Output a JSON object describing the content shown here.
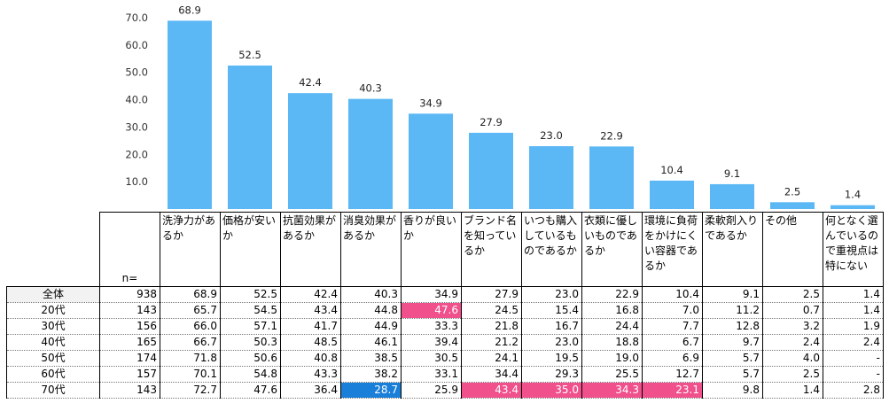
{
  "chart_data": {
    "type": "bar",
    "categories": [
      "洗浄力があるか",
      "価格が安いか",
      "抗菌効果があるか",
      "消臭効果があるか",
      "香りが良いか",
      "ブランド名を知っているか",
      "いつも購入しているものであるか",
      "衣類に優しいものであるか",
      "環境に負荷をかけにくい容器であるか",
      "柔軟剤入りであるか",
      "その他",
      "何となく選んでいるので重視点は特にない"
    ],
    "values": [
      68.9,
      52.5,
      42.4,
      40.3,
      34.9,
      27.9,
      23.0,
      22.9,
      10.4,
      9.1,
      2.5,
      1.4
    ],
    "value_labels": [
      "68.9",
      "52.5",
      "42.4",
      "40.3",
      "34.9",
      "27.9",
      "23.0",
      "22.9",
      "10.4",
      "9.1",
      "2.5",
      "1.4"
    ],
    "ylim": [
      0,
      70
    ],
    "yticks": [
      "70.0",
      "60.0",
      "50.0",
      "40.0",
      "30.0",
      "20.0",
      "10.0"
    ],
    "ytick_values": [
      70,
      60,
      50,
      40,
      30,
      20,
      10
    ],
    "bar_color": "#5bb8f5",
    "grid": false
  },
  "table": {
    "n_label": "n=",
    "headers": [
      "洗浄力があるか",
      "価格が安いか",
      "抗菌効果があるか",
      "消臭効果があるか",
      "香りが良いか",
      "ブランド名を知っているか",
      "いつも購入しているものであるか",
      "衣類に優しいものであるか",
      "環境に負荷をかけにくい容器であるか",
      "柔軟剤入りであるか",
      "その他",
      "何となく選んでいるので重視点は特にない"
    ],
    "rows": [
      {
        "label": "全体",
        "n": "938",
        "values": [
          "68.9",
          "52.5",
          "42.4",
          "40.3",
          "34.9",
          "27.9",
          "23.0",
          "22.9",
          "10.4",
          "9.1",
          "2.5",
          "1.4"
        ],
        "highlights": []
      },
      {
        "label": "20代",
        "n": "143",
        "values": [
          "65.7",
          "54.5",
          "43.4",
          "44.8",
          "47.6",
          "24.5",
          "15.4",
          "16.8",
          "7.0",
          "11.2",
          "0.7",
          "1.4"
        ],
        "highlights": [
          {
            "col": 4,
            "color": "pink"
          }
        ]
      },
      {
        "label": "30代",
        "n": "156",
        "values": [
          "66.0",
          "57.1",
          "41.7",
          "44.9",
          "33.3",
          "21.8",
          "16.7",
          "24.4",
          "7.7",
          "12.8",
          "3.2",
          "1.9"
        ],
        "highlights": []
      },
      {
        "label": "40代",
        "n": "165",
        "values": [
          "66.7",
          "50.3",
          "48.5",
          "46.1",
          "39.4",
          "21.2",
          "23.0",
          "18.8",
          "6.7",
          "9.7",
          "2.4",
          "2.4"
        ],
        "highlights": []
      },
      {
        "label": "50代",
        "n": "174",
        "values": [
          "71.8",
          "50.6",
          "40.8",
          "38.5",
          "30.5",
          "24.1",
          "19.5",
          "19.0",
          "6.9",
          "5.7",
          "4.0",
          "-"
        ],
        "highlights": []
      },
      {
        "label": "60代",
        "n": "157",
        "values": [
          "70.1",
          "54.8",
          "43.3",
          "38.2",
          "33.1",
          "34.4",
          "29.3",
          "25.5",
          "12.7",
          "5.7",
          "2.5",
          "-"
        ],
        "highlights": []
      },
      {
        "label": "70代",
        "n": "143",
        "values": [
          "72.7",
          "47.6",
          "36.4",
          "28.7",
          "25.9",
          "43.4",
          "35.0",
          "34.3",
          "23.1",
          "9.8",
          "1.4",
          "2.8"
        ],
        "highlights": [
          {
            "col": 3,
            "color": "blue"
          },
          {
            "col": 5,
            "color": "pink"
          },
          {
            "col": 6,
            "color": "pink"
          },
          {
            "col": 7,
            "color": "pink"
          },
          {
            "col": 8,
            "color": "pink"
          }
        ]
      }
    ],
    "colors": {
      "pink": "#f0508c",
      "blue": "#1a7fd9",
      "total_row_bg": "#f2f2f2"
    }
  }
}
